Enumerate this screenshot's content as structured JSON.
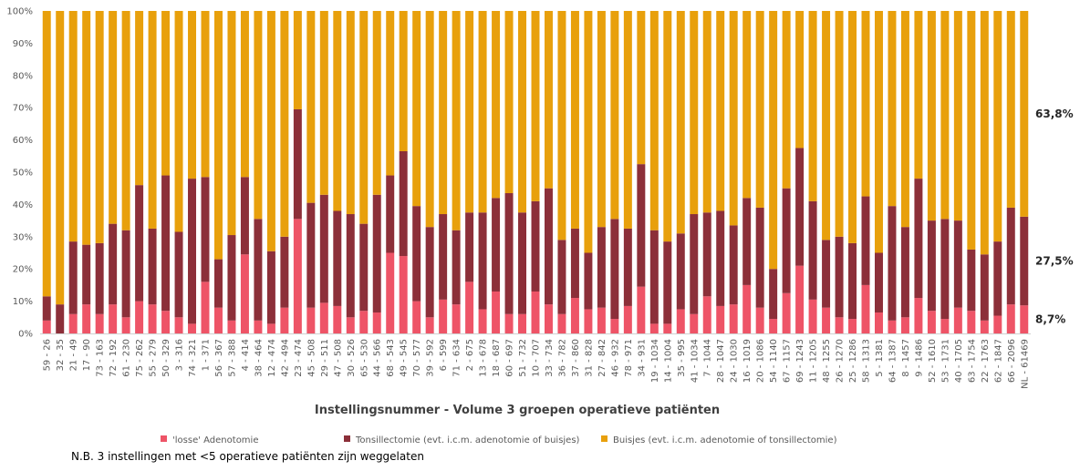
{
  "chart_data": {
    "type": "bar",
    "stacked": true,
    "xlabel": "Instellingsnummer - Volume 3 groepen operatieve patiënten",
    "ylabel": "",
    "ylim": [
      0,
      100
    ],
    "yticks": [
      "0%",
      "10%",
      "20%",
      "30%",
      "40%",
      "50%",
      "60%",
      "70%",
      "80%",
      "90%",
      "100%"
    ],
    "grid": false,
    "legend_position": "bottom",
    "categories": [
      "59 - 26",
      "32 - 35",
      "21 - 49",
      "17 - 90",
      "73 - 163",
      "72 - 192",
      "61 - 230",
      "75 - 262",
      "55 - 279",
      "50 - 329",
      "3 - 316",
      "74 - 321",
      "1 - 371",
      "56 - 367",
      "57 - 388",
      "4 - 414",
      "38 - 464",
      "12 - 474",
      "42 - 494",
      "23 - 474",
      "45 - 508",
      "29 - 511",
      "47 - 508",
      "30 - 526",
      "65 - 530",
      "44 - 566",
      "68 - 543",
      "49 - 545",
      "70 - 577",
      "39 - 592",
      "6 - 599",
      "71 - 634",
      "2 - 675",
      "13 - 678",
      "18 - 687",
      "60 - 697",
      "51 - 732",
      "10 - 707",
      "33 - 734",
      "36 - 782",
      "37 - 860",
      "31 - 828",
      "27 - 842",
      "46 - 932",
      "78 - 971",
      "34 - 931",
      "19 - 1034",
      "14 - 1004",
      "35 - 995",
      "41 - 1034",
      "7 - 1044",
      "28 - 1047",
      "24 - 1030",
      "16 - 1019",
      "20 - 1086",
      "54 - 1140",
      "67 - 1157",
      "69 - 1243",
      "11 - 1205",
      "48 - 1255",
      "26 - 1270",
      "25 - 1286",
      "58 - 1313",
      "5 - 1381",
      "64 - 1387",
      "8 - 1457",
      "9 - 1486",
      "52 - 1610",
      "53 - 1731",
      "40 - 1705",
      "63 - 1754",
      "22 - 1763",
      "62 - 1847",
      "66 - 2096",
      "NL - 61469"
    ],
    "series": [
      {
        "name": "'losse' Adenotomie",
        "color": "#ee5467",
        "values": [
          4,
          0,
          6,
          9,
          6,
          9,
          5,
          10,
          9,
          7,
          5,
          3,
          16,
          8,
          4,
          24.5,
          4,
          3,
          8,
          35.5,
          8,
          9.5,
          8.5,
          5,
          7,
          6.5,
          25,
          24,
          10,
          5,
          10.5,
          9,
          16,
          7.5,
          13,
          6,
          6,
          13,
          9,
          6,
          11,
          7.5,
          8,
          4.5,
          8.5,
          14.5,
          3,
          3,
          7.5,
          6,
          11.5,
          8.5,
          9,
          15,
          8,
          4.5,
          12.5,
          21,
          10.5,
          8,
          5,
          4.5,
          15,
          6.5,
          4,
          5,
          11,
          7,
          4.5,
          8,
          7,
          4,
          5.5,
          9,
          8.7
        ]
      },
      {
        "name": "Tonsillectomie (evt. i.c.m. adenotomie of buisjes)",
        "color": "#8c2f39",
        "values": [
          7.5,
          9,
          22.5,
          18.5,
          22,
          25,
          27,
          36,
          23.5,
          42,
          26.5,
          45,
          32.5,
          15,
          26.5,
          24,
          31.5,
          22.5,
          22,
          34,
          32.5,
          33.5,
          29.5,
          32,
          27,
          36.5,
          24,
          32.5,
          29.5,
          28,
          26.5,
          23,
          21.5,
          30,
          29,
          37.5,
          31.5,
          28,
          36,
          23,
          21.5,
          17.5,
          25,
          31,
          24,
          38,
          29,
          25.5,
          23.5,
          31,
          26,
          29.5,
          24.5,
          27,
          31,
          15.5,
          32.5,
          36.5,
          30.5,
          21,
          25,
          23.5,
          27.5,
          18.5,
          35.5,
          28,
          37,
          28,
          31,
          27,
          19,
          20.5,
          23,
          30,
          27.5
        ]
      },
      {
        "name": "Buisjes (evt. i.c.m. adenotomie of tonsillectomie)",
        "color": "#e8a00c",
        "values": [
          88.5,
          91,
          71.5,
          72.5,
          72,
          66,
          68,
          54,
          67.5,
          51,
          68.5,
          52,
          51.5,
          77,
          69.5,
          51.5,
          64.5,
          74.5,
          70,
          30.5,
          59.5,
          57,
          62,
          63,
          66,
          57,
          51,
          43.5,
          60.5,
          67,
          63,
          68,
          62.5,
          62.5,
          58,
          56.5,
          62.5,
          59,
          55,
          71,
          67.5,
          75,
          67,
          64.5,
          67.5,
          47.5,
          68,
          71.5,
          69,
          63,
          62.5,
          62,
          66.5,
          58,
          61,
          80,
          55,
          42.5,
          59,
          71,
          70,
          72,
          57.5,
          75,
          60.5,
          67,
          52,
          65,
          64.5,
          65,
          74,
          75.5,
          71.5,
          61,
          63.8
        ]
      }
    ],
    "end_labels": [
      {
        "series": 2,
        "text": "63,8%"
      },
      {
        "series": 1,
        "text": "27,5%"
      },
      {
        "series": 0,
        "text": "8,7%"
      }
    ]
  },
  "note": "N.B. 3 instellingen met <5 operatieve patiënten zijn weggelaten"
}
